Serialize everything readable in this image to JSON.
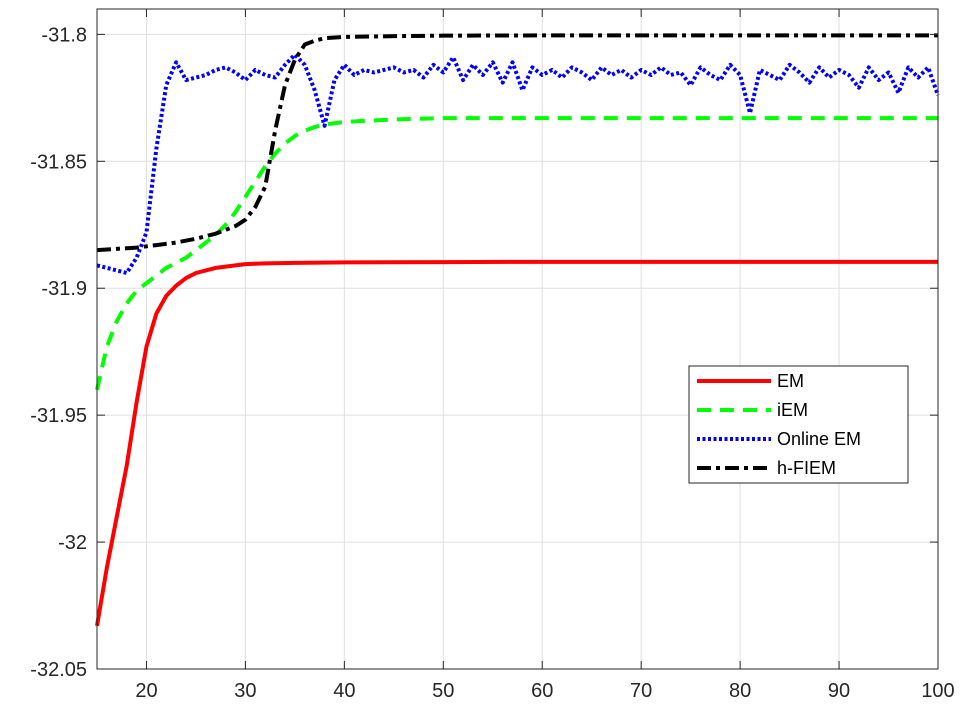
{
  "chart_data": {
    "type": "line",
    "title": "",
    "xlabel": "",
    "ylabel": "",
    "xlim": [
      15,
      100
    ],
    "ylim": [
      -32.05,
      -31.79
    ],
    "xticks": [
      20,
      30,
      40,
      50,
      60,
      70,
      80,
      90,
      100
    ],
    "yticks": [
      -31.8,
      -31.85,
      -31.9,
      -31.95,
      -32,
      -32.05
    ],
    "xtick_labels": [
      "20",
      "30",
      "40",
      "50",
      "60",
      "70",
      "80",
      "90",
      "100"
    ],
    "ytick_labels": [
      "-31.8",
      "-31.85",
      "-31.9",
      "-31.95",
      "-32",
      "-32.05"
    ],
    "grid": true,
    "legend_position": "right",
    "series": [
      {
        "name": "EM",
        "color": "#ff0000",
        "style": "solid",
        "points": [
          [
            15,
            -32.033
          ],
          [
            16,
            -32.01
          ],
          [
            17,
            -31.99
          ],
          [
            18,
            -31.97
          ],
          [
            19,
            -31.945
          ],
          [
            20,
            -31.923
          ],
          [
            21,
            -31.91
          ],
          [
            22,
            -31.903
          ],
          [
            23,
            -31.899
          ],
          [
            24,
            -31.896
          ],
          [
            25,
            -31.894
          ],
          [
            26,
            -31.893
          ],
          [
            27,
            -31.892
          ],
          [
            28,
            -31.8915
          ],
          [
            29,
            -31.891
          ],
          [
            30,
            -31.8905
          ],
          [
            32,
            -31.8902
          ],
          [
            35,
            -31.89
          ],
          [
            40,
            -31.8898
          ],
          [
            50,
            -31.8897
          ],
          [
            60,
            -31.8896
          ],
          [
            70,
            -31.8896
          ],
          [
            80,
            -31.8896
          ],
          [
            90,
            -31.8896
          ],
          [
            100,
            -31.8896
          ]
        ]
      },
      {
        "name": "iEM",
        "color": "#00ff00",
        "style": "dashed",
        "points": [
          [
            15,
            -31.94
          ],
          [
            16,
            -31.923
          ],
          [
            17,
            -31.913
          ],
          [
            18,
            -31.906
          ],
          [
            19,
            -31.901
          ],
          [
            20,
            -31.898
          ],
          [
            21,
            -31.895
          ],
          [
            22,
            -31.892
          ],
          [
            23,
            -31.89
          ],
          [
            24,
            -31.888
          ],
          [
            25,
            -31.885
          ],
          [
            26,
            -31.882
          ],
          [
            27,
            -31.879
          ],
          [
            28,
            -31.875
          ],
          [
            29,
            -31.87
          ],
          [
            30,
            -31.864
          ],
          [
            31,
            -31.858
          ],
          [
            32,
            -31.852
          ],
          [
            33,
            -31.847
          ],
          [
            34,
            -31.843
          ],
          [
            35,
            -31.84
          ],
          [
            36,
            -31.838
          ],
          [
            37,
            -31.8365
          ],
          [
            38,
            -31.8355
          ],
          [
            40,
            -31.8345
          ],
          [
            45,
            -31.8335
          ],
          [
            50,
            -31.833
          ],
          [
            60,
            -31.833
          ],
          [
            70,
            -31.833
          ],
          [
            80,
            -31.833
          ],
          [
            90,
            -31.833
          ],
          [
            100,
            -31.833
          ]
        ]
      },
      {
        "name": "Online EM",
        "color": "#0000ff",
        "style": "dotted",
        "points": [
          [
            15,
            -31.891
          ],
          [
            16,
            -31.892
          ],
          [
            17,
            -31.893
          ],
          [
            18,
            -31.894
          ],
          [
            19,
            -31.888
          ],
          [
            20,
            -31.878
          ],
          [
            21,
            -31.845
          ],
          [
            22,
            -31.82
          ],
          [
            23,
            -31.811
          ],
          [
            24,
            -31.818
          ],
          [
            25,
            -31.817
          ],
          [
            26,
            -31.816
          ],
          [
            27,
            -31.814
          ],
          [
            28,
            -31.813
          ],
          [
            29,
            -31.815
          ],
          [
            30,
            -31.818
          ],
          [
            31,
            -31.814
          ],
          [
            32,
            -31.816
          ],
          [
            33,
            -31.817
          ],
          [
            34,
            -31.812
          ],
          [
            35,
            -31.808
          ],
          [
            36,
            -31.812
          ],
          [
            37,
            -31.822
          ],
          [
            38,
            -31.836
          ],
          [
            39,
            -31.818
          ],
          [
            40,
            -31.812
          ],
          [
            41,
            -31.816
          ],
          [
            42,
            -31.814
          ],
          [
            43,
            -31.815
          ],
          [
            44,
            -31.814
          ],
          [
            45,
            -31.813
          ],
          [
            46,
            -31.815
          ],
          [
            47,
            -31.814
          ],
          [
            48,
            -31.817
          ],
          [
            49,
            -31.812
          ],
          [
            50,
            -31.815
          ],
          [
            51,
            -31.809
          ],
          [
            52,
            -31.818
          ],
          [
            53,
            -31.812
          ],
          [
            54,
            -31.816
          ],
          [
            55,
            -31.811
          ],
          [
            56,
            -31.819
          ],
          [
            57,
            -31.811
          ],
          [
            58,
            -31.822
          ],
          [
            59,
            -31.813
          ],
          [
            60,
            -31.816
          ],
          [
            61,
            -31.814
          ],
          [
            62,
            -31.817
          ],
          [
            63,
            -31.813
          ],
          [
            64,
            -31.815
          ],
          [
            65,
            -31.818
          ],
          [
            66,
            -31.813
          ],
          [
            67,
            -31.816
          ],
          [
            68,
            -31.814
          ],
          [
            69,
            -31.817
          ],
          [
            70,
            -31.814
          ],
          [
            71,
            -31.816
          ],
          [
            72,
            -31.813
          ],
          [
            73,
            -31.816
          ],
          [
            74,
            -31.815
          ],
          [
            75,
            -31.82
          ],
          [
            76,
            -31.813
          ],
          [
            77,
            -31.816
          ],
          [
            78,
            -31.818
          ],
          [
            79,
            -31.812
          ],
          [
            80,
            -31.816
          ],
          [
            81,
            -31.831
          ],
          [
            82,
            -31.814
          ],
          [
            83,
            -31.816
          ],
          [
            84,
            -31.818
          ],
          [
            85,
            -31.812
          ],
          [
            86,
            -31.815
          ],
          [
            87,
            -31.819
          ],
          [
            88,
            -31.813
          ],
          [
            89,
            -31.817
          ],
          [
            90,
            -31.814
          ],
          [
            91,
            -31.816
          ],
          [
            92,
            -31.821
          ],
          [
            93,
            -31.813
          ],
          [
            94,
            -31.818
          ],
          [
            95,
            -31.815
          ],
          [
            96,
            -31.823
          ],
          [
            97,
            -31.813
          ],
          [
            98,
            -31.817
          ],
          [
            99,
            -31.813
          ],
          [
            100,
            -31.824
          ]
        ]
      },
      {
        "name": "h-FIEM",
        "color": "#000000",
        "style": "dashdot",
        "points": [
          [
            15,
            -31.885
          ],
          [
            17,
            -31.8845
          ],
          [
            19,
            -31.884
          ],
          [
            21,
            -31.883
          ],
          [
            23,
            -31.882
          ],
          [
            25,
            -31.8805
          ],
          [
            27,
            -31.8785
          ],
          [
            28,
            -31.877
          ],
          [
            29,
            -31.8755
          ],
          [
            30,
            -31.873
          ],
          [
            31,
            -31.868
          ],
          [
            32,
            -31.86
          ],
          [
            33,
            -31.838
          ],
          [
            34,
            -31.82
          ],
          [
            35,
            -31.81
          ],
          [
            36,
            -31.804
          ],
          [
            37,
            -31.8025
          ],
          [
            38,
            -31.8015
          ],
          [
            40,
            -31.801
          ],
          [
            45,
            -31.8007
          ],
          [
            50,
            -31.8005
          ],
          [
            60,
            -31.8004
          ],
          [
            70,
            -31.8004
          ],
          [
            80,
            -31.8004
          ],
          [
            90,
            -31.8004
          ],
          [
            100,
            -31.8004
          ]
        ]
      }
    ]
  }
}
